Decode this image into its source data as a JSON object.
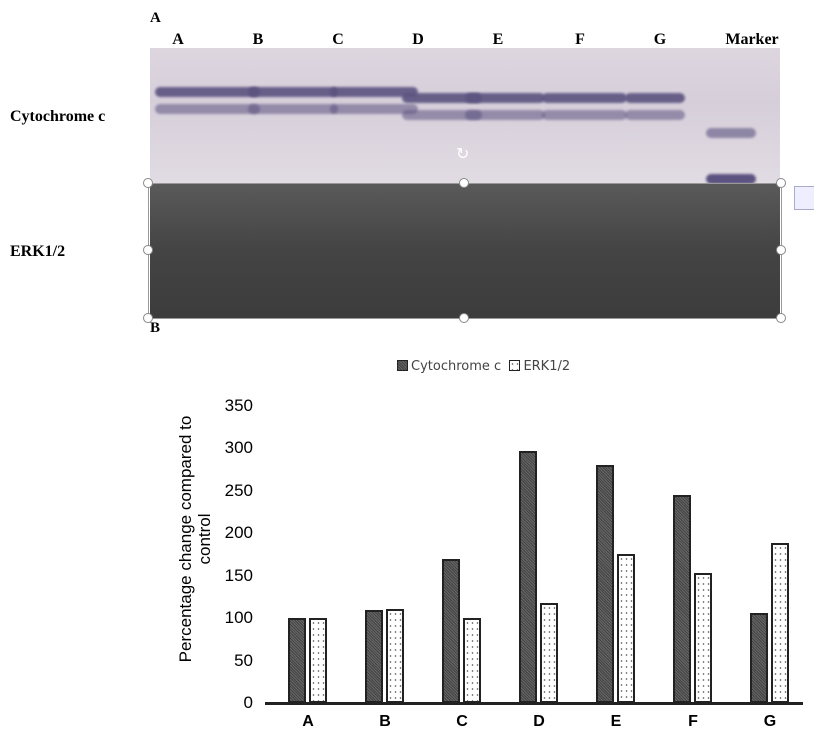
{
  "figure": {
    "panel_a": "A",
    "panel_b": "B"
  },
  "blot": {
    "lanes": [
      "A",
      "B",
      "C",
      "D",
      "E",
      "F",
      "G",
      "Marker"
    ],
    "rows": [
      "Cytochrome c",
      "ERK1/2"
    ]
  },
  "chart_data": {
    "type": "bar",
    "categories": [
      "A",
      "B",
      "C",
      "D",
      "E",
      "F",
      "G"
    ],
    "series": [
      {
        "name": "Cytochrome c",
        "values": [
          100,
          109,
          170,
          297,
          280,
          245,
          106
        ],
        "color": "#555555"
      },
      {
        "name": "ERK1/2",
        "values": [
          100,
          111,
          100,
          118,
          175,
          153,
          188
        ],
        "color": "#ffffff"
      }
    ],
    "ylabel": "Percentage change compared to control",
    "xlabel": "",
    "ylim": [
      0,
      350
    ],
    "yticks": [
      "0",
      "50",
      "100",
      "150",
      "200",
      "250",
      "300",
      "350"
    ],
    "legend": "top-center",
    "grid": false
  }
}
